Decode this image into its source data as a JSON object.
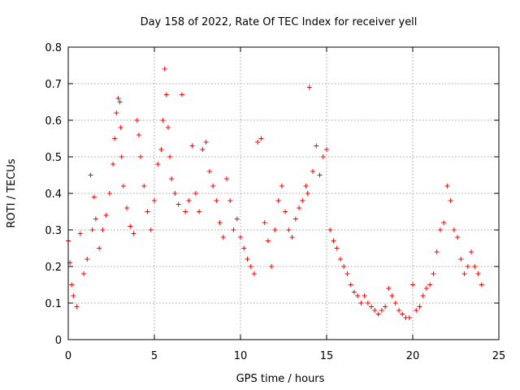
{
  "chart_data": {
    "type": "scatter",
    "title": "Day 158 of 2022, Rate Of TEC Index for receiver yell",
    "xlabel": "GPS time / hours",
    "ylabel": "ROTI / TECUs",
    "xlim": [
      0,
      25
    ],
    "ylim": [
      0,
      0.8
    ],
    "xticks": [
      0,
      5,
      10,
      15,
      20,
      25
    ],
    "yticks": [
      0,
      0.1,
      0.2,
      0.3,
      0.4,
      0.5,
      0.6,
      0.7,
      0.8
    ],
    "xtick_labels": [
      "0",
      "5",
      "10",
      "15",
      "20",
      "25"
    ],
    "ytick_labels": [
      "0",
      "0.1",
      "0.2",
      "0.3",
      "0.4",
      "0.5",
      "0.6",
      "0.7",
      "0.8"
    ],
    "grid": true,
    "marker": "plus",
    "color": "#ff0000",
    "series": [
      {
        "x": [
          0.0,
          0.1,
          0.2,
          0.3,
          0.5,
          0.7,
          0.9,
          1.1,
          1.3,
          1.4,
          1.5,
          1.6,
          1.8,
          2.0,
          2.2,
          2.4,
          2.6,
          2.7,
          2.8,
          2.9,
          3.0,
          3.05,
          3.1,
          3.2,
          3.4,
          3.6,
          3.8,
          4.0,
          4.1,
          4.2,
          4.4,
          4.6,
          4.8,
          5.0,
          5.2,
          5.4,
          5.5,
          5.6,
          5.7,
          5.8,
          5.9,
          6.0,
          6.2,
          6.4,
          6.6,
          6.8,
          7.0,
          7.2,
          7.4,
          7.6,
          7.8,
          8.0,
          8.2,
          8.4,
          8.6,
          8.8,
          9.0,
          9.2,
          9.4,
          9.6,
          9.8,
          10.0,
          10.2,
          10.4,
          10.6,
          10.8,
          11.0,
          11.2,
          11.4,
          11.6,
          11.8,
          12.0,
          12.2,
          12.4,
          12.6,
          12.8,
          13.0,
          13.2,
          13.4,
          13.6,
          13.8,
          13.9,
          14.0,
          14.2,
          14.4,
          14.6,
          14.8,
          15.0,
          15.2,
          15.4,
          15.6,
          15.8,
          16.0,
          16.2,
          16.4,
          16.6,
          16.8,
          17.0,
          17.2,
          17.4,
          17.6,
          17.8,
          18.0,
          18.2,
          18.4,
          18.6,
          18.8,
          19.0,
          19.2,
          19.4,
          19.6,
          19.8,
          20.0,
          20.2,
          20.4,
          20.6,
          20.8,
          21.0,
          21.2,
          21.4,
          21.6,
          21.8,
          22.0,
          22.2,
          22.4,
          22.6,
          22.8,
          23.0,
          23.2,
          23.4,
          23.6,
          23.8,
          24.0
        ],
        "y": [
          0.27,
          0.21,
          0.15,
          0.12,
          0.09,
          0.29,
          0.18,
          0.22,
          0.45,
          0.3,
          0.39,
          0.33,
          0.25,
          0.3,
          0.34,
          0.4,
          0.48,
          0.55,
          0.62,
          0.66,
          0.65,
          0.58,
          0.5,
          0.42,
          0.36,
          0.31,
          0.29,
          0.6,
          0.56,
          0.5,
          0.42,
          0.35,
          0.3,
          0.38,
          0.48,
          0.52,
          0.6,
          0.74,
          0.67,
          0.58,
          0.5,
          0.44,
          0.4,
          0.37,
          0.67,
          0.35,
          0.38,
          0.53,
          0.4,
          0.35,
          0.52,
          0.54,
          0.46,
          0.42,
          0.38,
          0.32,
          0.28,
          0.44,
          0.38,
          0.3,
          0.33,
          0.28,
          0.25,
          0.22,
          0.2,
          0.18,
          0.54,
          0.55,
          0.32,
          0.27,
          0.2,
          0.3,
          0.38,
          0.42,
          0.35,
          0.3,
          0.28,
          0.33,
          0.36,
          0.38,
          0.42,
          0.4,
          0.69,
          0.46,
          0.53,
          0.45,
          0.5,
          0.52,
          0.3,
          0.27,
          0.25,
          0.22,
          0.2,
          0.18,
          0.15,
          0.13,
          0.12,
          0.1,
          0.12,
          0.1,
          0.09,
          0.08,
          0.07,
          0.08,
          0.09,
          0.14,
          0.12,
          0.1,
          0.08,
          0.07,
          0.06,
          0.06,
          0.15,
          0.08,
          0.09,
          0.12,
          0.14,
          0.15,
          0.18,
          0.24,
          0.3,
          0.32,
          0.42,
          0.38,
          0.3,
          0.28,
          0.22,
          0.18,
          0.2,
          0.24,
          0.2,
          0.18,
          0.15
        ]
      }
    ]
  }
}
